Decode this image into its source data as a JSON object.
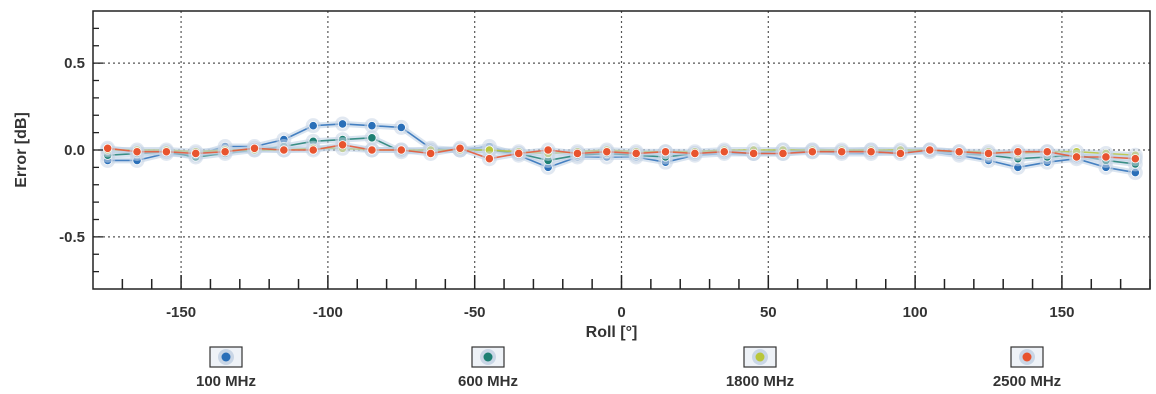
{
  "chart_data": {
    "type": "line",
    "title": "",
    "xlabel": "Roll [°]",
    "ylabel": "Error [dB]",
    "xlim": [
      -180,
      180
    ],
    "ylim": [
      -0.8,
      0.8
    ],
    "xticks": [
      -150,
      -100,
      -50,
      0,
      50,
      100,
      150
    ],
    "yticks": [
      0.5,
      0.0,
      -0.5
    ],
    "xtick_labels": [
      "-150",
      "-100",
      "-50",
      "0",
      "50",
      "100",
      "150"
    ],
    "ytick_labels": [
      "0.5",
      "0.0",
      "-0.5"
    ],
    "grid": true,
    "legend_position": "bottom",
    "x": [
      -175,
      -165,
      -155,
      -145,
      -135,
      -125,
      -115,
      -105,
      -95,
      -85,
      -75,
      -65,
      -55,
      -45,
      -35,
      -25,
      -15,
      -5,
      5,
      15,
      25,
      35,
      45,
      55,
      65,
      75,
      85,
      95,
      105,
      115,
      125,
      135,
      145,
      155,
      165,
      175
    ],
    "series": [
      {
        "name": "100 MHz",
        "color": "#2a6fb8",
        "values": [
          -0.06,
          -0.06,
          -0.02,
          -0.03,
          0.02,
          0.02,
          0.06,
          0.14,
          0.15,
          0.14,
          0.13,
          0.01,
          0.0,
          0.02,
          -0.03,
          -0.1,
          -0.04,
          -0.04,
          -0.04,
          -0.07,
          -0.03,
          -0.02,
          -0.02,
          -0.02,
          0.0,
          -0.02,
          -0.02,
          -0.01,
          -0.01,
          -0.03,
          -0.06,
          -0.1,
          -0.07,
          -0.05,
          -0.1,
          -0.13
        ]
      },
      {
        "name": "600 MHz",
        "color": "#1d7f73",
        "values": [
          -0.03,
          -0.02,
          -0.01,
          -0.04,
          -0.02,
          0.0,
          0.02,
          0.05,
          0.06,
          0.07,
          -0.01,
          0.0,
          0.0,
          0.0,
          -0.02,
          -0.06,
          -0.03,
          -0.02,
          -0.03,
          -0.04,
          -0.02,
          -0.01,
          -0.02,
          0.0,
          -0.01,
          -0.01,
          0.0,
          -0.01,
          0.0,
          -0.02,
          -0.03,
          -0.05,
          -0.04,
          -0.03,
          -0.06,
          -0.08
        ]
      },
      {
        "name": "1800 MHz",
        "color": "#b9c63a",
        "values": [
          0.0,
          0.0,
          0.0,
          -0.01,
          0.0,
          0.0,
          0.0,
          0.01,
          0.01,
          0.0,
          0.0,
          0.0,
          0.0,
          0.0,
          -0.01,
          -0.02,
          -0.01,
          0.0,
          -0.01,
          -0.01,
          -0.01,
          0.0,
          0.0,
          0.0,
          0.0,
          0.0,
          0.0,
          0.0,
          0.0,
          -0.01,
          -0.01,
          -0.02,
          -0.01,
          -0.01,
          -0.02,
          -0.03
        ]
      },
      {
        "name": "2500 MHz",
        "color": "#e8542f",
        "values": [
          0.01,
          -0.01,
          -0.01,
          -0.02,
          -0.01,
          0.01,
          0.0,
          0.0,
          0.03,
          0.0,
          0.0,
          -0.02,
          0.01,
          -0.05,
          -0.02,
          0.0,
          -0.02,
          -0.01,
          -0.02,
          -0.01,
          -0.02,
          -0.01,
          -0.02,
          -0.02,
          -0.01,
          -0.01,
          -0.01,
          -0.02,
          0.0,
          -0.01,
          -0.02,
          -0.01,
          -0.01,
          -0.04,
          -0.04,
          -0.05
        ]
      }
    ]
  }
}
